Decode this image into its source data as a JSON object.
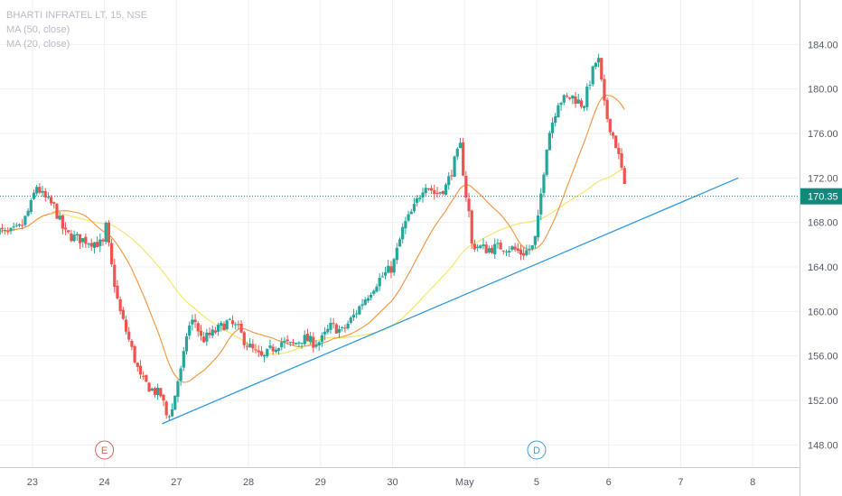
{
  "legend": {
    "symbol": "BHARTI INFRATEL LT, 15, NSE",
    "ma1": "MA (50, close)",
    "ma2": "MA (20, close)"
  },
  "colors": {
    "up": "#26a69a",
    "down": "#ef5350",
    "ma50": "#f7e66b",
    "ma20": "#f59a4a",
    "trendline": "#2f9ae0",
    "price_line": "#0d8a7a",
    "price_badge": "#0d8a7a",
    "marker_e": "#e05a5a",
    "marker_d": "#3aa0e0"
  },
  "chart_data": {
    "type": "candlestick",
    "y_ticks": [
      "184.00",
      "180.00",
      "176.00",
      "172.00",
      "168.00",
      "164.00",
      "160.00",
      "156.00",
      "152.00",
      "148.00"
    ],
    "y_tick_values": [
      184,
      180,
      176,
      172,
      168,
      164,
      160,
      156,
      152,
      148
    ],
    "ylim": [
      146,
      188
    ],
    "x_ticks": [
      "23",
      "24",
      "27",
      "28",
      "29",
      "30",
      "May",
      "5",
      "6",
      "7",
      "8"
    ],
    "x_tick_sessions": [
      0,
      1,
      2,
      3,
      4,
      5,
      6,
      7,
      8,
      9,
      10
    ],
    "xlim": [
      -0.45,
      10.65
    ],
    "last_price": 170.35,
    "last_price_label": "170.35",
    "events": [
      {
        "letter": "E",
        "session": 1.0,
        "color_key": "marker_e"
      },
      {
        "letter": "D",
        "session": 7.0,
        "color_key": "marker_d"
      }
    ],
    "trendline": {
      "from": [
        1.8,
        149.9
      ],
      "to": [
        9.8,
        172.0
      ]
    },
    "anchors": [
      [
        -0.5,
        167.4
      ],
      [
        -0.35,
        166.9
      ],
      [
        -0.15,
        167.6
      ],
      [
        0.0,
        169.9
      ],
      [
        0.05,
        171.4
      ],
      [
        0.15,
        170.3
      ],
      [
        0.3,
        169.4
      ],
      [
        0.45,
        167.0
      ],
      [
        0.6,
        166.6
      ],
      [
        0.8,
        166.3
      ],
      [
        1.0,
        166.0
      ],
      [
        1.02,
        167.6
      ],
      [
        1.1,
        164.0
      ],
      [
        1.2,
        160.3
      ],
      [
        1.35,
        157.2
      ],
      [
        1.5,
        154.0
      ],
      [
        1.65,
        153.0
      ],
      [
        1.8,
        152.4
      ],
      [
        1.85,
        150.6
      ],
      [
        1.95,
        151.2
      ],
      [
        2.0,
        153.4
      ],
      [
        2.08,
        155.0
      ],
      [
        2.15,
        158.4
      ],
      [
        2.25,
        159.3
      ],
      [
        2.35,
        157.4
      ],
      [
        2.5,
        158.0
      ],
      [
        2.7,
        159.0
      ],
      [
        2.85,
        158.5
      ],
      [
        2.95,
        157.3
      ],
      [
        3.1,
        156.2
      ],
      [
        3.2,
        155.7
      ],
      [
        3.3,
        156.5
      ],
      [
        3.45,
        157.3
      ],
      [
        3.6,
        156.9
      ],
      [
        3.75,
        157.6
      ],
      [
        3.9,
        157.2
      ],
      [
        4.0,
        157.3
      ],
      [
        4.15,
        158.7
      ],
      [
        4.3,
        158.2
      ],
      [
        4.45,
        159.5
      ],
      [
        4.6,
        161.0
      ],
      [
        4.8,
        162.8
      ],
      [
        5.0,
        164.0
      ],
      [
        5.05,
        165.2
      ],
      [
        5.15,
        167.6
      ],
      [
        5.3,
        169.3
      ],
      [
        5.45,
        171.6
      ],
      [
        5.6,
        170.5
      ],
      [
        5.75,
        171.3
      ],
      [
        5.85,
        173.3
      ],
      [
        5.95,
        175.0
      ],
      [
        6.0,
        171.0
      ],
      [
        6.05,
        169.6
      ],
      [
        6.1,
        166.0
      ],
      [
        6.3,
        165.6
      ],
      [
        6.5,
        165.8
      ],
      [
        6.65,
        165.7
      ],
      [
        6.8,
        165.2
      ],
      [
        6.95,
        165.8
      ],
      [
        7.0,
        167.0
      ],
      [
        7.05,
        170.0
      ],
      [
        7.15,
        175.5
      ],
      [
        7.3,
        178.9
      ],
      [
        7.5,
        179.3
      ],
      [
        7.65,
        178.5
      ],
      [
        7.75,
        181.0
      ],
      [
        7.85,
        183.0
      ],
      [
        7.95,
        178.0
      ],
      [
        8.1,
        175.0
      ],
      [
        8.2,
        172.2
      ],
      [
        8.25,
        170.35
      ]
    ]
  }
}
